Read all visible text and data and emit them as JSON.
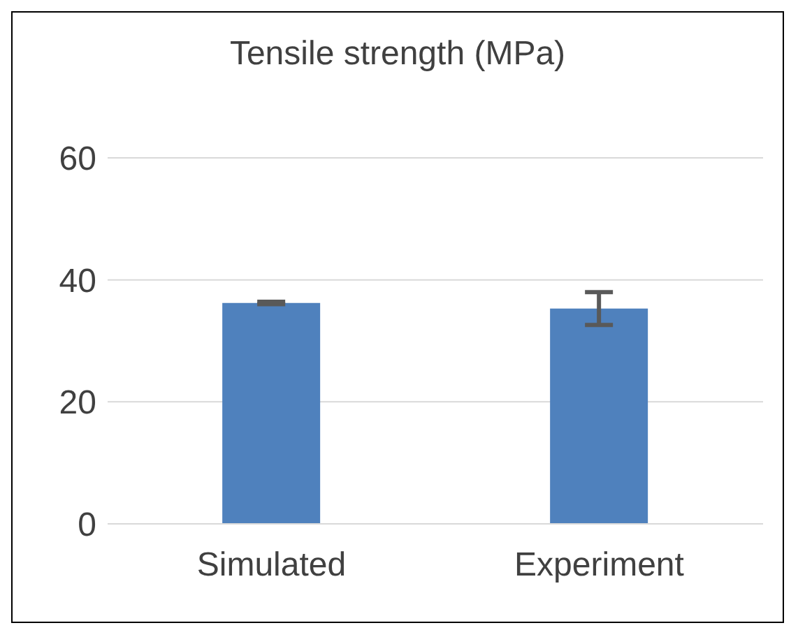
{
  "chart_data": {
    "type": "bar",
    "title": "Tensile strength (MPa)",
    "categories": [
      "Simulated",
      "Experiment"
    ],
    "values": [
      36.2,
      35.3
    ],
    "errors": [
      0.2,
      2.7
    ],
    "color": "#4f81bd",
    "ylim": [
      0,
      60
    ],
    "yticks": [
      0,
      20,
      40,
      60
    ],
    "grid": "y"
  }
}
